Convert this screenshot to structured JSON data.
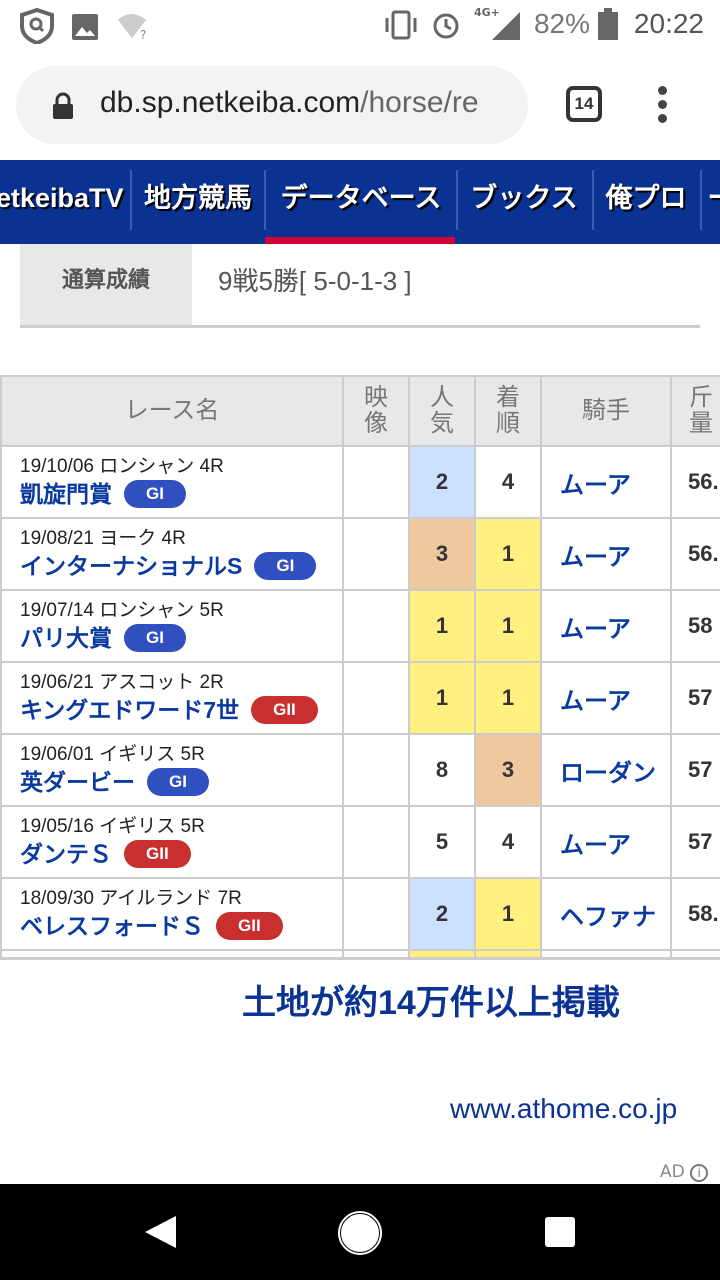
{
  "status_bar": {
    "battery": "82%",
    "time": "20:22",
    "network": "4G+",
    "icons": [
      "shield-search-icon",
      "image-icon",
      "wifi-unknown-icon",
      "vibrate-icon",
      "alarm-icon",
      "signal-icon",
      "battery-icon"
    ]
  },
  "browser": {
    "url_host": "db.sp.netkeiba.com",
    "url_path": "/horse/re",
    "tab_count": "14"
  },
  "nav": {
    "items": [
      "etkeibaTV",
      "地方競馬",
      "データベース",
      "ブックス",
      "俺プロ",
      "ー"
    ],
    "active": "データベース"
  },
  "summary": {
    "label": "通算成績",
    "value": "9戦5勝[ 5-0-1-3 ]"
  },
  "table": {
    "headers": [
      "レース名",
      "映像",
      "人気",
      "着順",
      "騎手",
      "斤量"
    ],
    "rows": [
      {
        "meta": "19/10/06 ロンシャン 4R",
        "name": "凱旋門賞",
        "grade": "GI",
        "pop": "2",
        "finish": "4",
        "jockey": "ムーア",
        "weight": "56.",
        "pop_color": "blue",
        "finish_color": "none"
      },
      {
        "meta": "19/08/21 ヨーク 4R",
        "name": "インターナショナルS",
        "grade": "GI",
        "pop": "3",
        "finish": "1",
        "jockey": "ムーア",
        "weight": "56.",
        "pop_color": "orange",
        "finish_color": "yellow"
      },
      {
        "meta": "19/07/14 ロンシャン 5R",
        "name": "パリ大賞",
        "grade": "GI",
        "pop": "1",
        "finish": "1",
        "jockey": "ムーア",
        "weight": "58",
        "pop_color": "yellow",
        "finish_color": "yellow"
      },
      {
        "meta": "19/06/21 アスコット 2R",
        "name": "キングエドワード7世",
        "grade": "GII",
        "pop": "1",
        "finish": "1",
        "jockey": "ムーア",
        "weight": "57",
        "pop_color": "yellow",
        "finish_color": "yellow"
      },
      {
        "meta": "19/06/01 イギリス 5R",
        "name": "英ダービー",
        "grade": "GI",
        "pop": "8",
        "finish": "3",
        "jockey": "ローダン",
        "weight": "57",
        "pop_color": "none",
        "finish_color": "orange"
      },
      {
        "meta": "19/05/16 イギリス 5R",
        "name": "ダンテＳ",
        "grade": "GII",
        "pop": "5",
        "finish": "4",
        "jockey": "ムーア",
        "weight": "57",
        "pop_color": "none",
        "finish_color": "none"
      },
      {
        "meta": "18/09/30 アイルランド 7R",
        "name": "ベレスフォードＳ",
        "grade": "GII",
        "pop": "2",
        "finish": "1",
        "jockey": "ヘファナ",
        "weight": "58.",
        "pop_color": "blue",
        "finish_color": "yellow"
      }
    ]
  },
  "colors": {
    "nav_bg": "#0a3293",
    "active_underline": "#d0003a",
    "GI": "#3050c0",
    "GII": "#c83030",
    "blue": "#cce0ff",
    "orange": "#efc8a0",
    "yellow": "#fff080",
    "none": "#ffffff"
  },
  "ad": {
    "headline": "土地が約14万件以上掲載",
    "url": "www.athome.co.jp",
    "tag": "AD"
  }
}
